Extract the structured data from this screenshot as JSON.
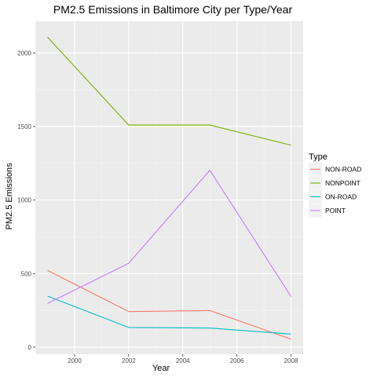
{
  "chart_data": {
    "type": "line",
    "title": "PM2.5 Emissions in Baltimore City per Type/Year",
    "xlabel": "Year",
    "ylabel": "PM2.5 Emissions",
    "x": [
      1999,
      2002,
      2005,
      2008
    ],
    "xlim": [
      1998.55,
      2008.45
    ],
    "ylim": [
      -48,
      2216
    ],
    "xticks": [
      2000,
      2002,
      2004,
      2006,
      2008
    ],
    "yticks": [
      0,
      500,
      1000,
      1500,
      2000
    ],
    "grid": true,
    "legend": {
      "title": "Type",
      "position": "right"
    },
    "series": [
      {
        "name": "NON-ROAD",
        "color": "#F8766D",
        "values": [
          522,
          242,
          249,
          55
        ]
      },
      {
        "name": "NONPOINT",
        "color": "#7CAE00",
        "values": [
          2108,
          1510,
          1510,
          1373
        ]
      },
      {
        "name": "ON-ROAD",
        "color": "#00BFC4",
        "values": [
          347,
          134,
          130,
          89
        ]
      },
      {
        "name": "POINT",
        "color": "#C77CFF",
        "values": [
          297,
          570,
          1203,
          345
        ]
      }
    ]
  }
}
